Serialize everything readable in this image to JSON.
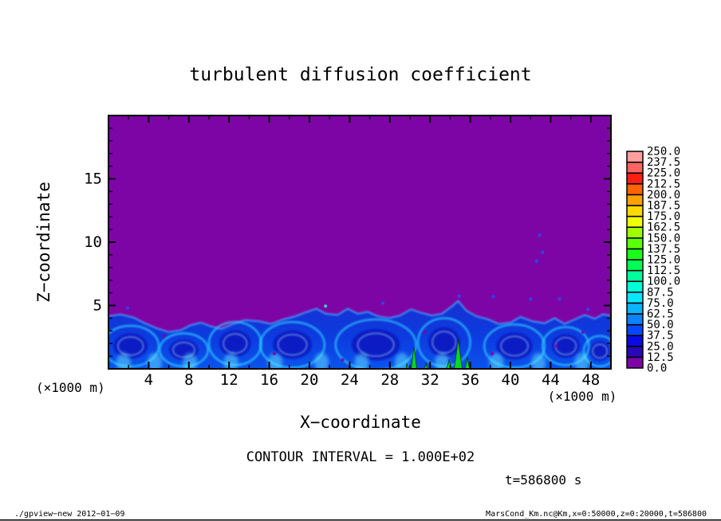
{
  "chart_data": {
    "type": "heatmap",
    "title": "turbulent diffusion coefficient",
    "annotations": {
      "contour_interval": "CONTOUR INTERVAL = 1.000E+02",
      "time": "t=586800 s"
    },
    "axes": {
      "xlabel": "X−coordinate",
      "ylabel": "Z−coordinate",
      "x_unit": "(×1000 m)",
      "y_unit": "(×1000 m)",
      "x_range": [
        0,
        50
      ],
      "z_range": [
        0,
        20
      ],
      "x_major_ticks": [
        4,
        8,
        12,
        16,
        20,
        24,
        28,
        32,
        36,
        40,
        44,
        48
      ],
      "x_minor_step": 2,
      "z_major_ticks": [
        5,
        10,
        15
      ],
      "z_minor_step": 1
    },
    "colorbar": {
      "levels": [
        0,
        12.5,
        25,
        37.5,
        50,
        62.5,
        75,
        87.5,
        100,
        112.5,
        125,
        137.5,
        150,
        162.5,
        175,
        187.5,
        200,
        212.5,
        225,
        237.5,
        250
      ],
      "cell_colors_bottom_to_top": [
        "#7d05a5",
        "#2a07b8",
        "#0b0bdf",
        "#0b46ff",
        "#0b82ff",
        "#0bb4ff",
        "#0be6ff",
        "#00ffd8",
        "#00ff9c",
        "#00ff55",
        "#19ff19",
        "#5aff0b",
        "#a0ff00",
        "#f0ff00",
        "#ffd800",
        "#ffa200",
        "#ff6400",
        "#ff1e14",
        "#ff6464",
        "#ff9e9e"
      ]
    },
    "colors": {
      "field_background": "#7d05a5",
      "turb_top": "#1630d2",
      "turb_bottom": "#0b54ec",
      "boundary_rim": "#44aaff",
      "eddy_ring": "#2fd4ff",
      "eddy_inner": "#b8f6ff",
      "eddy_core": "#0716bf",
      "column": "#a8f4ff",
      "streak": "#66e8ff",
      "plume_green": "#07dd1e",
      "speck_blue": "#1b50ff",
      "speck_cyan": "#2fe8c8",
      "frame": "#000000"
    },
    "field": {
      "description": "background field 0-12.5 (purple) above a turbulent boundary layer below z~5 km with values ~25-150",
      "boundary_layer_top_km": [
        [
          0,
          4.15
        ],
        [
          1.2,
          4.3
        ],
        [
          2.5,
          4.05
        ],
        [
          3.6,
          3.6
        ],
        [
          4.8,
          3.2
        ],
        [
          6.0,
          2.9
        ],
        [
          7.2,
          3.05
        ],
        [
          8.2,
          3.45
        ],
        [
          9.2,
          3.65
        ],
        [
          10.2,
          3.35
        ],
        [
          11.2,
          3.15
        ],
        [
          12.4,
          3.55
        ],
        [
          13.6,
          3.85
        ],
        [
          15.0,
          3.75
        ],
        [
          16.2,
          3.55
        ],
        [
          17.4,
          3.9
        ],
        [
          18.6,
          4.15
        ],
        [
          19.6,
          4.45
        ],
        [
          20.7,
          4.75
        ],
        [
          21.6,
          4.35
        ],
        [
          22.8,
          4.25
        ],
        [
          23.8,
          4.75
        ],
        [
          24.8,
          4.35
        ],
        [
          25.8,
          4.5
        ],
        [
          26.8,
          4.15
        ],
        [
          27.9,
          4.0
        ],
        [
          29.0,
          4.2
        ],
        [
          30.1,
          4.7
        ],
        [
          31.0,
          4.45
        ],
        [
          32.2,
          4.2
        ],
        [
          33.2,
          4.35
        ],
        [
          34.2,
          4.95
        ],
        [
          34.8,
          5.35
        ],
        [
          35.6,
          4.6
        ],
        [
          36.6,
          4.15
        ],
        [
          37.8,
          3.9
        ],
        [
          38.8,
          3.55
        ],
        [
          40.0,
          3.65
        ],
        [
          41.0,
          4.1
        ],
        [
          42.2,
          3.75
        ],
        [
          43.4,
          3.6
        ],
        [
          44.4,
          4.0
        ],
        [
          45.4,
          3.55
        ],
        [
          46.4,
          3.9
        ],
        [
          47.4,
          4.25
        ],
        [
          48.4,
          3.95
        ],
        [
          49.2,
          4.3
        ],
        [
          50,
          4.2
        ]
      ],
      "eddies_km": [
        [
          2.2,
          1.8,
          2.8,
          1.6
        ],
        [
          7.5,
          1.5,
          2.4,
          1.3
        ],
        [
          12.6,
          2.0,
          2.6,
          1.7
        ],
        [
          18.3,
          1.9,
          3.2,
          1.8
        ],
        [
          26.6,
          1.9,
          4.0,
          2.0
        ],
        [
          33.4,
          2.1,
          2.6,
          1.9
        ],
        [
          40.4,
          1.8,
          3.0,
          1.7
        ],
        [
          45.5,
          1.8,
          2.3,
          1.5
        ],
        [
          48.9,
          1.4,
          1.6,
          1.2
        ]
      ],
      "green_plumes_km": [
        [
          30.4,
          0.28,
          1.75
        ],
        [
          34.8,
          0.4,
          2.3
        ],
        [
          31.6,
          0.8,
          0.5
        ],
        [
          33.9,
          0.55,
          0.75
        ],
        [
          35.7,
          0.3,
          0.95
        ],
        [
          29.7,
          0.35,
          0.45
        ]
      ],
      "cyan_columns_km": [
        [
          2.0,
          3.7
        ],
        [
          9.3,
          3.3
        ],
        [
          14.0,
          3.5
        ],
        [
          20.7,
          4.5
        ],
        [
          23.8,
          4.55
        ],
        [
          30.4,
          4.45
        ],
        [
          34.8,
          5.1
        ],
        [
          40.4,
          3.4
        ],
        [
          42.9,
          3.4
        ],
        [
          46.4,
          3.6
        ]
      ],
      "bottom_streaks_x_km": [
        1.5,
        4.6,
        8.1,
        12.2,
        16.6,
        21.2,
        25.2,
        29.2,
        33.2,
        38.6,
        42.8,
        47.1
      ],
      "specks_above_km": [
        [
          1.9,
          4.8
        ],
        [
          21.6,
          4.95
        ],
        [
          27.3,
          5.2
        ],
        [
          34.9,
          5.75
        ],
        [
          38.3,
          5.7
        ],
        [
          42.0,
          5.5
        ],
        [
          44.9,
          5.5
        ],
        [
          42.6,
          8.5
        ],
        [
          43.2,
          9.2
        ],
        [
          42.9,
          10.55
        ],
        [
          47.7,
          4.7
        ]
      ],
      "specks_inside_km": [
        [
          5.5,
          2.6
        ],
        [
          16.5,
          1.2
        ],
        [
          23.3,
          0.7
        ],
        [
          31.5,
          2.9
        ],
        [
          38.2,
          1.2
        ],
        [
          44.6,
          1.8
        ],
        [
          47.2,
          2.9
        ]
      ]
    }
  },
  "footer": {
    "left": "./gpview−new  2012−01−09",
    "right": "MarsCond_Km.nc@Km,x=0:50000,z=0:20000,t=586800"
  }
}
